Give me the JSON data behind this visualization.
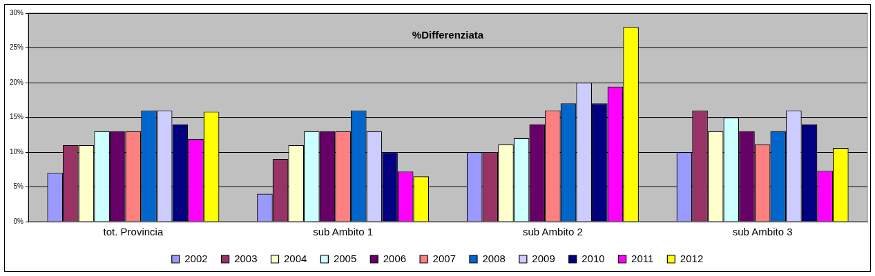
{
  "chart_data": {
    "type": "bar",
    "title": "%Differenziata",
    "categories": [
      "tot. Provincia",
      "sub Ambito 1",
      "sub Ambito 2",
      "sub Ambito 3"
    ],
    "series": [
      {
        "name": "2002",
        "color": "#9999ff",
        "values": [
          7,
          4,
          10,
          10
        ]
      },
      {
        "name": "2003",
        "color": "#993366",
        "values": [
          11,
          9,
          10,
          16
        ]
      },
      {
        "name": "2004",
        "color": "#ffffcc",
        "values": [
          11,
          11,
          11.1,
          13
        ]
      },
      {
        "name": "2005",
        "color": "#ccffff",
        "values": [
          13,
          13,
          12,
          15
        ]
      },
      {
        "name": "2006",
        "color": "#660066",
        "values": [
          13,
          13,
          14,
          13
        ]
      },
      {
        "name": "2007",
        "color": "#ff8080",
        "values": [
          13,
          13,
          16,
          11.1
        ]
      },
      {
        "name": "2008",
        "color": "#0066cc",
        "values": [
          16,
          16,
          17,
          13
        ]
      },
      {
        "name": "2009",
        "color": "#ccccff",
        "values": [
          16,
          13,
          20,
          16
        ]
      },
      {
        "name": "2010",
        "color": "#000080",
        "values": [
          14,
          10,
          17,
          14
        ]
      },
      {
        "name": "2011",
        "color": "#ff00ff",
        "values": [
          11.9,
          7.2,
          19.4,
          7.3
        ]
      },
      {
        "name": "2012",
        "color": "#ffff00",
        "values": [
          15.8,
          6.5,
          28,
          10.6
        ]
      }
    ],
    "ylim": [
      0,
      30
    ],
    "yticks": [
      {
        "value": 0,
        "label": "0%"
      },
      {
        "value": 5,
        "label": "5%"
      },
      {
        "value": 10,
        "label": "10%"
      },
      {
        "value": 15,
        "label": "15%"
      },
      {
        "value": 20,
        "label": "20%"
      },
      {
        "value": 25,
        "label": "25%"
      },
      {
        "value": 30,
        "label": "30%"
      }
    ],
    "grid": "y",
    "legend": "bottom"
  }
}
